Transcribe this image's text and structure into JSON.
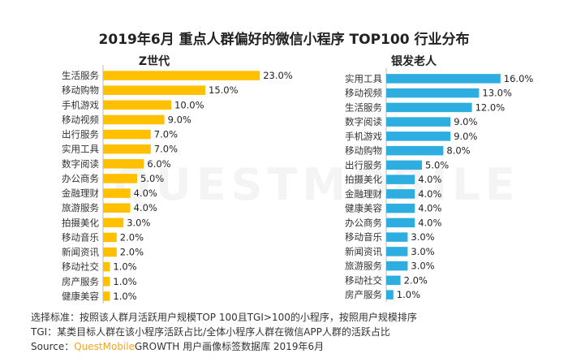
{
  "title": "2019年6月 重点人群偏好的微信小程序 TOP100 行业分布",
  "colors": {
    "left_bar": "#ffc000",
    "right_bar": "#2eaee0",
    "axis": "#bbbbbb"
  },
  "watermark": "QUESTMOBILE",
  "footnotes": {
    "criteria": "选择标准：按照该人群月活跃用户规模TOP 100且TGI>100的小程序，按照用户规模排序",
    "tgi": "TGI：某类目标人群在该小程序活跃占比/全体小程序人群在微信APP人群的活跃占比",
    "source_prefix": "Source：",
    "source_brand": "QuestMobile",
    "source_rest": "GROWTH 用户画像标签数据库  2019年6月"
  },
  "chart_data": [
    {
      "type": "bar",
      "orientation": "horizontal",
      "title": "Z世代",
      "categories": [
        "生活服务",
        "移动购物",
        "手机游戏",
        "移动视频",
        "出行服务",
        "实用工具",
        "数字阅读",
        "办公商务",
        "金融理财",
        "旅游服务",
        "拍摄美化",
        "移动音乐",
        "新闻资讯",
        "移动社交",
        "房产服务",
        "健康美容"
      ],
      "values": [
        23.0,
        15.0,
        10.0,
        9.0,
        7.0,
        7.0,
        6.0,
        5.0,
        4.0,
        4.0,
        3.0,
        2.0,
        2.0,
        1.0,
        1.0,
        1.0
      ],
      "labels": [
        "23.0%",
        "15.0%",
        "10.0%",
        "9.0%",
        "7.0%",
        "7.0%",
        "6.0%",
        "5.0%",
        "4.0%",
        "4.0%",
        "3.0%",
        "2.0%",
        "2.0%",
        "1.0%",
        "1.0%",
        "1.0%"
      ],
      "color": "#ffc000",
      "grid": false
    },
    {
      "type": "bar",
      "orientation": "horizontal",
      "title": "银发老人",
      "categories": [
        "实用工具",
        "移动视频",
        "生活服务",
        "数字阅读",
        "手机游戏",
        "移动购物",
        "出行服务",
        "拍摄美化",
        "金融理财",
        "健康美容",
        "办公商务",
        "移动音乐",
        "新闻资讯",
        "旅游服务",
        "移动社交",
        "房产服务"
      ],
      "values": [
        16.0,
        13.0,
        12.0,
        9.0,
        9.0,
        8.0,
        5.0,
        4.0,
        4.0,
        4.0,
        4.0,
        3.0,
        3.0,
        3.0,
        2.0,
        1.0
      ],
      "labels": [
        "16.0%",
        "13.0%",
        "12.0%",
        "9.0%",
        "9.0%",
        "8.0%",
        "5.0%",
        "4.0%",
        "4.0%",
        "4.0%",
        "4.0%",
        "3.0%",
        "3.0%",
        "3.0%",
        "2.0%",
        "1.0%"
      ],
      "color": "#2eaee0",
      "grid": false
    }
  ]
}
